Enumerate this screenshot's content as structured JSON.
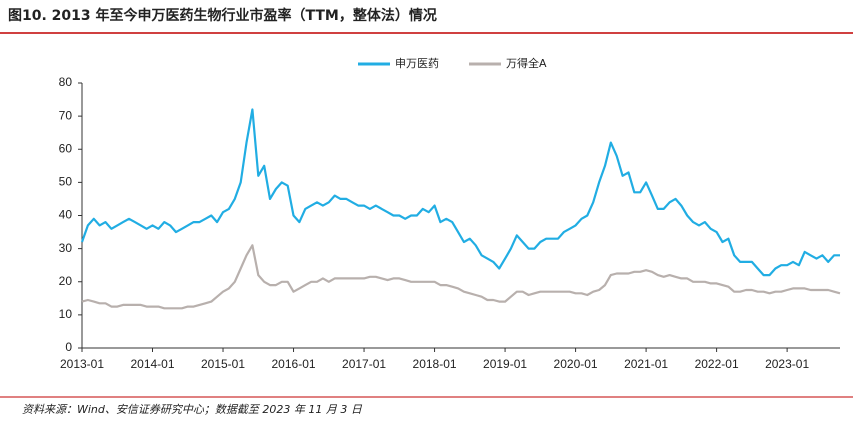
{
  "chart_data": {
    "type": "line",
    "title": "图10. 2013 年至今申万医药生物行业市盈率（TTM，整体法）情况",
    "source": "资料来源：Wind、安信证券研究中心；数据截至 2023 年 11 月 3 日",
    "x": [
      "2013-01",
      "2013-02",
      "2013-03",
      "2013-04",
      "2013-05",
      "2013-06",
      "2013-07",
      "2013-08",
      "2013-09",
      "2013-10",
      "2013-11",
      "2013-12",
      "2014-01",
      "2014-02",
      "2014-03",
      "2014-04",
      "2014-05",
      "2014-06",
      "2014-07",
      "2014-08",
      "2014-09",
      "2014-10",
      "2014-11",
      "2014-12",
      "2015-01",
      "2015-02",
      "2015-03",
      "2015-04",
      "2015-05",
      "2015-06",
      "2015-07",
      "2015-08",
      "2015-09",
      "2015-10",
      "2015-11",
      "2015-12",
      "2016-01",
      "2016-02",
      "2016-03",
      "2016-04",
      "2016-05",
      "2016-06",
      "2016-07",
      "2016-08",
      "2016-09",
      "2016-10",
      "2016-11",
      "2016-12",
      "2017-01",
      "2017-02",
      "2017-03",
      "2017-04",
      "2017-05",
      "2017-06",
      "2017-07",
      "2017-08",
      "2017-09",
      "2017-10",
      "2017-11",
      "2017-12",
      "2018-01",
      "2018-02",
      "2018-03",
      "2018-04",
      "2018-05",
      "2018-06",
      "2018-07",
      "2018-08",
      "2018-09",
      "2018-10",
      "2018-11",
      "2018-12",
      "2019-01",
      "2019-02",
      "2019-03",
      "2019-04",
      "2019-05",
      "2019-06",
      "2019-07",
      "2019-08",
      "2019-09",
      "2019-10",
      "2019-11",
      "2019-12",
      "2020-01",
      "2020-02",
      "2020-03",
      "2020-04",
      "2020-05",
      "2020-06",
      "2020-07",
      "2020-08",
      "2020-09",
      "2020-10",
      "2020-11",
      "2020-12",
      "2021-01",
      "2021-02",
      "2021-03",
      "2021-04",
      "2021-05",
      "2021-06",
      "2021-07",
      "2021-08",
      "2021-09",
      "2021-10",
      "2021-11",
      "2021-12",
      "2022-01",
      "2022-02",
      "2022-03",
      "2022-04",
      "2022-05",
      "2022-06",
      "2022-07",
      "2022-08",
      "2022-09",
      "2022-10",
      "2022-11",
      "2022-12",
      "2023-01",
      "2023-02",
      "2023-03",
      "2023-04",
      "2023-05",
      "2023-06",
      "2023-07",
      "2023-08",
      "2023-09",
      "2023-10"
    ],
    "series": [
      {
        "name": "申万医药",
        "color": "#21ade3",
        "values": [
          32,
          37,
          39,
          37,
          38,
          36,
          37,
          38,
          39,
          38,
          37,
          36,
          37,
          36,
          38,
          37,
          35,
          36,
          37,
          38,
          38,
          39,
          40,
          38,
          41,
          42,
          45,
          50,
          62,
          72,
          52,
          55,
          45,
          48,
          50,
          49,
          40,
          38,
          42,
          43,
          44,
          43,
          44,
          46,
          45,
          45,
          44,
          43,
          43,
          42,
          43,
          42,
          41,
          40,
          40,
          39,
          40,
          40,
          42,
          41,
          43,
          38,
          39,
          38,
          35,
          32,
          33,
          31,
          28,
          27,
          26,
          24,
          27,
          30,
          34,
          32,
          30,
          30,
          32,
          33,
          33,
          33,
          35,
          36,
          37,
          39,
          40,
          44,
          50,
          55,
          62,
          58,
          52,
          53,
          47,
          47,
          50,
          46,
          42,
          42,
          44,
          45,
          43,
          40,
          38,
          37,
          38,
          36,
          35,
          32,
          33,
          28,
          26,
          26,
          26,
          24,
          22,
          22,
          24,
          25,
          25,
          26,
          25,
          29,
          28,
          27,
          28,
          26,
          28,
          28
        ]
      },
      {
        "name": "万得全A",
        "color": "#b8b0ad",
        "values": [
          14,
          14.5,
          14,
          13.5,
          13.5,
          12.5,
          12.5,
          13,
          13,
          13,
          13,
          12.5,
          12.5,
          12.5,
          12,
          12,
          12,
          12,
          12.5,
          12.5,
          13,
          13.5,
          14,
          15.5,
          17,
          18,
          20,
          24,
          28,
          31,
          22,
          20,
          19,
          19,
          20,
          20,
          17,
          18,
          19,
          20,
          20,
          21,
          20,
          21,
          21,
          21,
          21,
          21,
          21,
          21.5,
          21.5,
          21,
          20.5,
          21,
          21,
          20.5,
          20,
          20,
          20,
          20,
          20,
          19,
          19,
          18.5,
          18,
          17,
          16.5,
          16,
          15.5,
          14.5,
          14.5,
          14,
          14,
          15.5,
          17,
          17,
          16,
          16.5,
          17,
          17,
          17,
          17,
          17,
          17,
          16.5,
          16.5,
          16,
          17,
          17.5,
          19,
          22,
          22.5,
          22.5,
          22.5,
          23,
          23,
          23.5,
          23,
          22,
          21.5,
          22,
          21.5,
          21,
          21,
          20,
          20,
          20,
          19.5,
          19.5,
          19,
          18.5,
          17,
          17,
          17.5,
          17.5,
          17,
          17,
          16.5,
          17,
          17,
          17.5,
          18,
          18,
          18,
          17.5,
          17.5,
          17.5,
          17.5,
          17,
          16.5
        ]
      }
    ],
    "xlim": [
      "2013-01",
      "2023-10"
    ],
    "xticks": [
      "2013-01",
      "2014-01",
      "2015-01",
      "2016-01",
      "2017-01",
      "2018-01",
      "2019-01",
      "2020-01",
      "2021-01",
      "2022-01",
      "2023-01"
    ],
    "ylim": [
      0,
      80
    ],
    "yticks": [
      0,
      10,
      20,
      30,
      40,
      50,
      60,
      70,
      80
    ],
    "legend": "top"
  }
}
